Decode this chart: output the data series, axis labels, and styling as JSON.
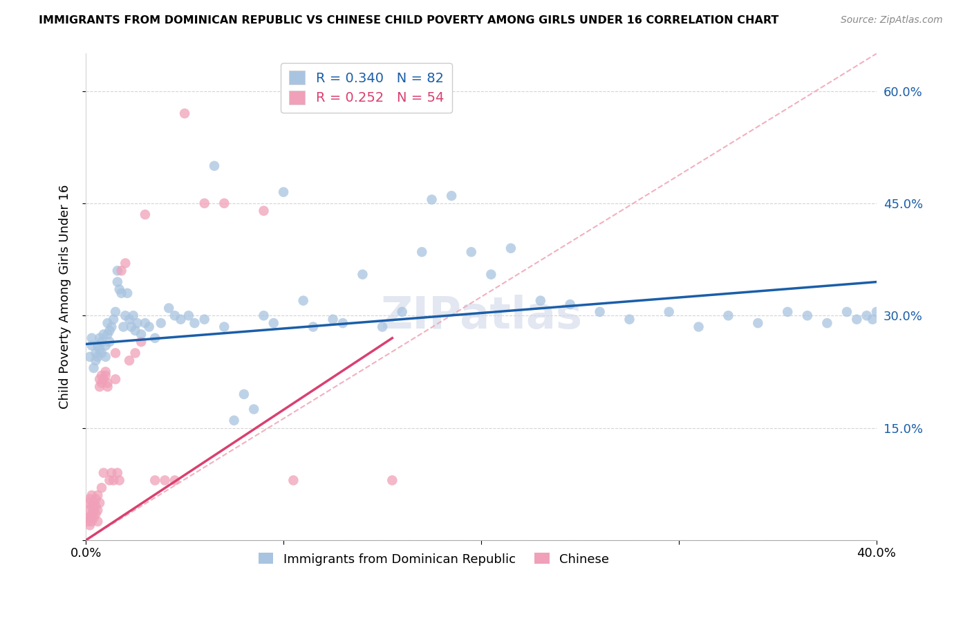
{
  "title": "IMMIGRANTS FROM DOMINICAN REPUBLIC VS CHINESE CHILD POVERTY AMONG GIRLS UNDER 16 CORRELATION CHART",
  "source": "Source: ZipAtlas.com",
  "ylabel": "Child Poverty Among Girls Under 16",
  "xlim": [
    0.0,
    0.4
  ],
  "ylim": [
    0.0,
    0.65
  ],
  "ytick_vals": [
    0.0,
    0.15,
    0.3,
    0.45,
    0.6
  ],
  "ytick_labels": [
    "",
    "15.0%",
    "30.0%",
    "45.0%",
    "60.0%"
  ],
  "xtick_vals": [
    0.0,
    0.1,
    0.2,
    0.3,
    0.4
  ],
  "xtick_labels": [
    "0.0%",
    "",
    "",
    "",
    "40.0%"
  ],
  "blue_R": 0.34,
  "blue_N": 82,
  "pink_R": 0.252,
  "pink_N": 54,
  "blue_color": "#a8c4e0",
  "pink_color": "#f0a0b8",
  "blue_line_color": "#1a5ea8",
  "pink_line_color": "#d94070",
  "pink_dash_color": "#f0a8b8",
  "watermark": "ZIPatlas",
  "blue_line": [
    0.0,
    0.262,
    0.4,
    0.345
  ],
  "pink_line": [
    0.0,
    0.0,
    0.155,
    0.27
  ],
  "pink_dash": [
    0.0,
    0.0,
    0.4,
    0.65
  ],
  "blue_legend_label": "R = 0.340   N = 82",
  "pink_legend_label": "R = 0.252   N = 54",
  "blue_bottom_label": "Immigrants from Dominican Republic",
  "pink_bottom_label": "Chinese",
  "blue_points_x": [
    0.002,
    0.003,
    0.003,
    0.004,
    0.005,
    0.005,
    0.006,
    0.006,
    0.007,
    0.007,
    0.008,
    0.008,
    0.009,
    0.01,
    0.01,
    0.011,
    0.011,
    0.012,
    0.012,
    0.013,
    0.014,
    0.015,
    0.016,
    0.016,
    0.017,
    0.018,
    0.019,
    0.02,
    0.021,
    0.022,
    0.023,
    0.024,
    0.025,
    0.026,
    0.028,
    0.03,
    0.032,
    0.035,
    0.038,
    0.042,
    0.045,
    0.048,
    0.052,
    0.055,
    0.06,
    0.065,
    0.07,
    0.075,
    0.08,
    0.085,
    0.09,
    0.095,
    0.1,
    0.11,
    0.115,
    0.125,
    0.13,
    0.14,
    0.15,
    0.16,
    0.17,
    0.175,
    0.185,
    0.195,
    0.205,
    0.215,
    0.23,
    0.245,
    0.26,
    0.275,
    0.295,
    0.31,
    0.325,
    0.34,
    0.355,
    0.365,
    0.375,
    0.385,
    0.39,
    0.395,
    0.398,
    0.4
  ],
  "blue_points_y": [
    0.245,
    0.27,
    0.26,
    0.23,
    0.25,
    0.24,
    0.26,
    0.245,
    0.27,
    0.255,
    0.265,
    0.25,
    0.275,
    0.26,
    0.245,
    0.29,
    0.275,
    0.28,
    0.265,
    0.285,
    0.295,
    0.305,
    0.345,
    0.36,
    0.335,
    0.33,
    0.285,
    0.3,
    0.33,
    0.295,
    0.285,
    0.3,
    0.28,
    0.29,
    0.275,
    0.29,
    0.285,
    0.27,
    0.29,
    0.31,
    0.3,
    0.295,
    0.3,
    0.29,
    0.295,
    0.5,
    0.285,
    0.16,
    0.195,
    0.175,
    0.3,
    0.29,
    0.465,
    0.32,
    0.285,
    0.295,
    0.29,
    0.355,
    0.285,
    0.305,
    0.385,
    0.455,
    0.46,
    0.385,
    0.355,
    0.39,
    0.32,
    0.315,
    0.305,
    0.295,
    0.305,
    0.285,
    0.3,
    0.29,
    0.305,
    0.3,
    0.29,
    0.305,
    0.295,
    0.3,
    0.295,
    0.305
  ],
  "pink_points_x": [
    0.001,
    0.001,
    0.001,
    0.002,
    0.002,
    0.002,
    0.002,
    0.003,
    0.003,
    0.003,
    0.003,
    0.004,
    0.004,
    0.004,
    0.005,
    0.005,
    0.005,
    0.006,
    0.006,
    0.006,
    0.007,
    0.007,
    0.007,
    0.008,
    0.008,
    0.008,
    0.009,
    0.009,
    0.01,
    0.01,
    0.011,
    0.011,
    0.012,
    0.013,
    0.014,
    0.015,
    0.015,
    0.016,
    0.017,
    0.018,
    0.02,
    0.022,
    0.025,
    0.028,
    0.03,
    0.035,
    0.04,
    0.045,
    0.05,
    0.06,
    0.07,
    0.09,
    0.105,
    0.155
  ],
  "pink_points_y": [
    0.03,
    0.05,
    0.025,
    0.04,
    0.055,
    0.03,
    0.02,
    0.045,
    0.035,
    0.06,
    0.025,
    0.05,
    0.04,
    0.03,
    0.055,
    0.045,
    0.035,
    0.06,
    0.04,
    0.025,
    0.205,
    0.215,
    0.05,
    0.21,
    0.22,
    0.07,
    0.215,
    0.09,
    0.22,
    0.225,
    0.21,
    0.205,
    0.08,
    0.09,
    0.08,
    0.25,
    0.215,
    0.09,
    0.08,
    0.36,
    0.37,
    0.24,
    0.25,
    0.265,
    0.435,
    0.08,
    0.08,
    0.08,
    0.57,
    0.45,
    0.45,
    0.44,
    0.08,
    0.08
  ]
}
